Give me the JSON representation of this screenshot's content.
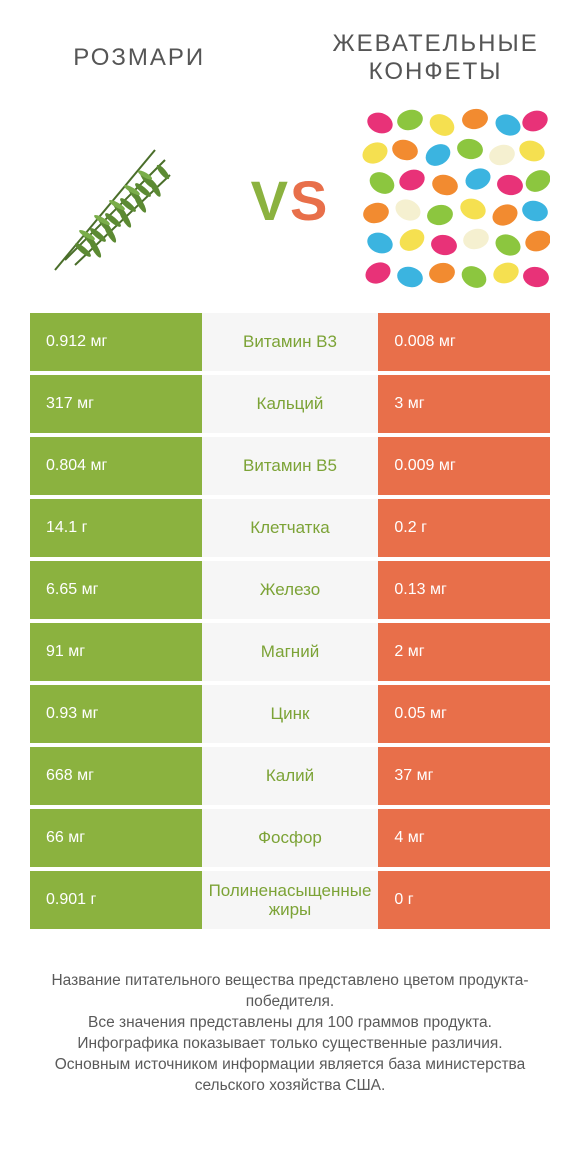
{
  "titles": {
    "left": "РОЗМАРИ",
    "right": "ЖЕВАТЕЛЬНЫЕ КОНФЕТЫ"
  },
  "vs": {
    "v": "V",
    "s": "S"
  },
  "colors": {
    "green": "#8bb23f",
    "orange": "#e86f4a",
    "mid_bg": "#f6f6f6",
    "text": "#4a4a4a"
  },
  "rows": [
    {
      "left": "0.912 мг",
      "mid": "Витамин B3",
      "right": "0.008 мг",
      "winner": "left"
    },
    {
      "left": "317 мг",
      "mid": "Кальций",
      "right": "3 мг",
      "winner": "left"
    },
    {
      "left": "0.804 мг",
      "mid": "Витамин B5",
      "right": "0.009 мг",
      "winner": "left"
    },
    {
      "left": "14.1 г",
      "mid": "Клетчатка",
      "right": "0.2 г",
      "winner": "left"
    },
    {
      "left": "6.65 мг",
      "mid": "Железо",
      "right": "0.13 мг",
      "winner": "left"
    },
    {
      "left": "91 мг",
      "mid": "Магний",
      "right": "2 мг",
      "winner": "left"
    },
    {
      "left": "0.93 мг",
      "mid": "Цинк",
      "right": "0.05 мг",
      "winner": "left"
    },
    {
      "left": "668 мг",
      "mid": "Калий",
      "right": "37 мг",
      "winner": "left"
    },
    {
      "left": "66 мг",
      "mid": "Фосфор",
      "right": "4 мг",
      "winner": "left"
    },
    {
      "left": "0.901 г",
      "mid": "Полиненасыщенные жиры",
      "right": "0 г",
      "winner": "left"
    }
  ],
  "footer": "Название питательного вещества представлено цветом продукта-победителя.\nВсе значения представлены для 100 граммов продукта.\nИнфографика показывает только существенные различия.\nОсновным источником информации является база министерства сельского хозяйства США."
}
